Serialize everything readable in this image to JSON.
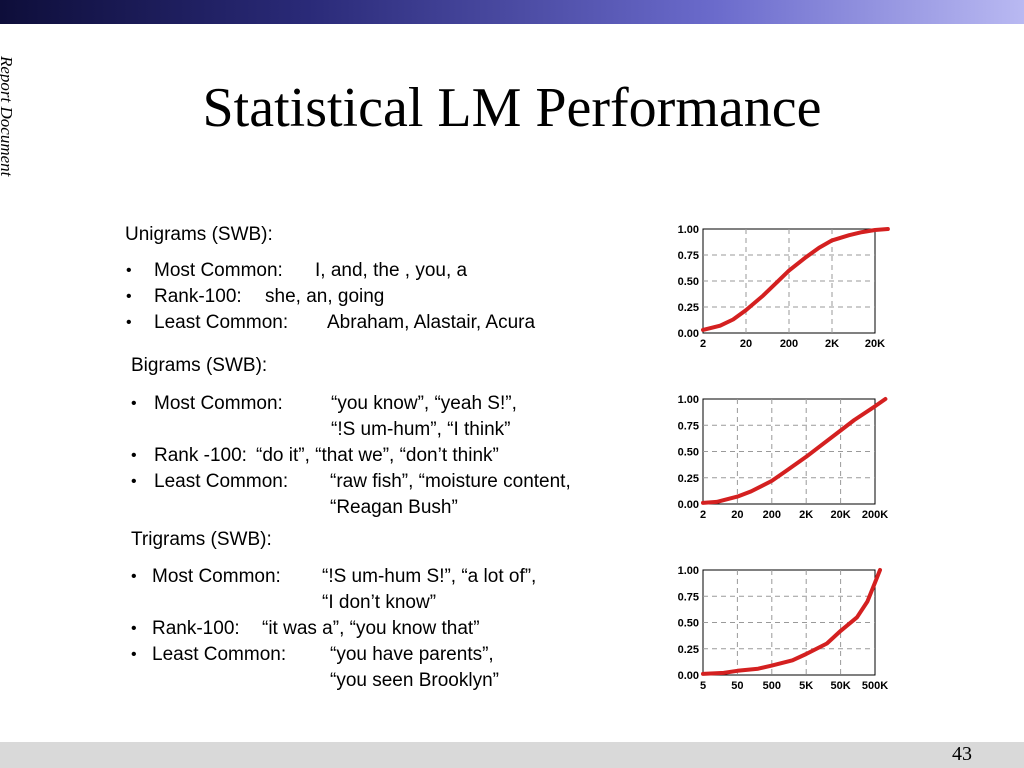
{
  "side_label": "Report Document",
  "title": "Statistical LM Performance",
  "page_number": "43",
  "sections": [
    {
      "heading": "Unigrams (SWB):",
      "items": [
        {
          "label": "Most Common:",
          "values": [
            "I, and, the , you, a"
          ]
        },
        {
          "label": "Rank-100:",
          "values": [
            "she, an, going"
          ]
        },
        {
          "label": "Least Common:",
          "values": [
            "Abraham, Alastair, Acura"
          ]
        }
      ]
    },
    {
      "heading": "Bigrams (SWB):",
      "items": [
        {
          "label": "Most Common:",
          "values": [
            "“you know”, “yeah S!”,",
            "“!S um-hum”, “I think”"
          ]
        },
        {
          "label": "Rank -100:",
          "values": [
            "“do it”, “that we”, “don’t think”"
          ]
        },
        {
          "label": "Least Common:",
          "values": [
            "“raw fish”, “moisture content,",
            "“Reagan Bush”"
          ]
        }
      ]
    },
    {
      "heading": "Trigrams (SWB):",
      "items": [
        {
          "label": "Most Common:",
          "values": [
            "“!S um-hum S!”, “a lot of”,",
            "“I don’t know”"
          ]
        },
        {
          "label": "Rank-100:",
          "values": [
            "“it was a”, “you know that”"
          ]
        },
        {
          "label": "Least Common:",
          "values": [
            "“you have parents”,",
            "“you seen Brooklyn”"
          ]
        }
      ]
    }
  ],
  "chart_data": [
    {
      "type": "line",
      "x_ticks": [
        "2",
        "20",
        "200",
        "2K",
        "20K"
      ],
      "y_ticks": [
        "0.00",
        "0.25",
        "0.50",
        "0.75",
        "1.00"
      ],
      "ylim": [
        0,
        1
      ],
      "x_scale": "log",
      "grid": true,
      "color": "#d42020",
      "x": [
        2,
        5,
        10,
        20,
        50,
        100,
        200,
        500,
        1000,
        2000,
        5000,
        10000,
        20000,
        40000
      ],
      "y": [
        0.03,
        0.07,
        0.13,
        0.22,
        0.36,
        0.48,
        0.6,
        0.73,
        0.82,
        0.89,
        0.94,
        0.97,
        0.99,
        1.0
      ]
    },
    {
      "type": "line",
      "x_ticks": [
        "2",
        "20",
        "200",
        "2K",
        "20K",
        "200K"
      ],
      "y_ticks": [
        "0.00",
        "0.25",
        "0.50",
        "0.75",
        "1.00"
      ],
      "ylim": [
        0,
        1
      ],
      "x_scale": "log",
      "grid": true,
      "color": "#d42020",
      "x": [
        2,
        5,
        20,
        50,
        200,
        500,
        2000,
        5000,
        20000,
        50000,
        200000,
        400000
      ],
      "y": [
        0.01,
        0.02,
        0.07,
        0.12,
        0.22,
        0.31,
        0.45,
        0.55,
        0.7,
        0.8,
        0.93,
        1.0
      ]
    },
    {
      "type": "line",
      "x_ticks": [
        "5",
        "50",
        "500",
        "5K",
        "50K",
        "500K"
      ],
      "y_ticks": [
        "0.00",
        "0.25",
        "0.50",
        "0.75",
        "1.00"
      ],
      "ylim": [
        0,
        1
      ],
      "x_scale": "log",
      "grid": true,
      "color": "#d42020",
      "x": [
        5,
        20,
        50,
        200,
        500,
        2000,
        5000,
        20000,
        50000,
        150000,
        300000,
        500000,
        700000
      ],
      "y": [
        0.01,
        0.02,
        0.04,
        0.06,
        0.09,
        0.14,
        0.2,
        0.3,
        0.42,
        0.55,
        0.7,
        0.88,
        1.0
      ]
    }
  ]
}
